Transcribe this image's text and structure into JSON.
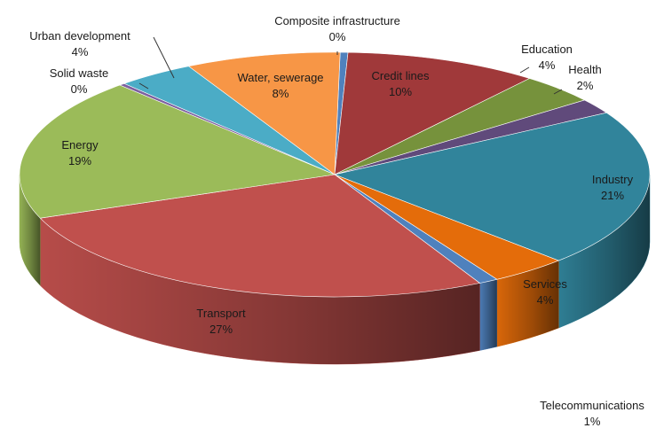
{
  "chart_data": {
    "type": "pie",
    "title": "",
    "three_d": true,
    "legend": "none",
    "slices": [
      {
        "name": "Composite infrastructure",
        "pct_label": "0%",
        "value": 0.4,
        "color": "#4f81bd"
      },
      {
        "name": "Credit lines",
        "pct_label": "10%",
        "value": 10,
        "color": "#a0393a"
      },
      {
        "name": "Education",
        "pct_label": "4%",
        "value": 4,
        "color": "#76923c"
      },
      {
        "name": "Health",
        "pct_label": "2%",
        "value": 2,
        "color": "#604a7b"
      },
      {
        "name": "Industry",
        "pct_label": "21%",
        "value": 21,
        "color": "#31849b"
      },
      {
        "name": "Services",
        "pct_label": "4%",
        "value": 4,
        "color": "#e46c0a"
      },
      {
        "name": "Telecommunications",
        "pct_label": "1%",
        "value": 1,
        "color": "#4f81bd"
      },
      {
        "name": "Transport",
        "pct_label": "27%",
        "value": 27,
        "color": "#c0504d"
      },
      {
        "name": "Energy",
        "pct_label": "19%",
        "value": 19,
        "color": "#9bbb59"
      },
      {
        "name": "Solid waste",
        "pct_label": "0%",
        "value": 0.3,
        "color": "#7d60a0"
      },
      {
        "name": "Urban development",
        "pct_label": "4%",
        "value": 4,
        "color": "#4bacc6"
      },
      {
        "name": "Water, sewerage",
        "pct_label": "8%",
        "value": 8,
        "color": "#f79646"
      }
    ]
  }
}
